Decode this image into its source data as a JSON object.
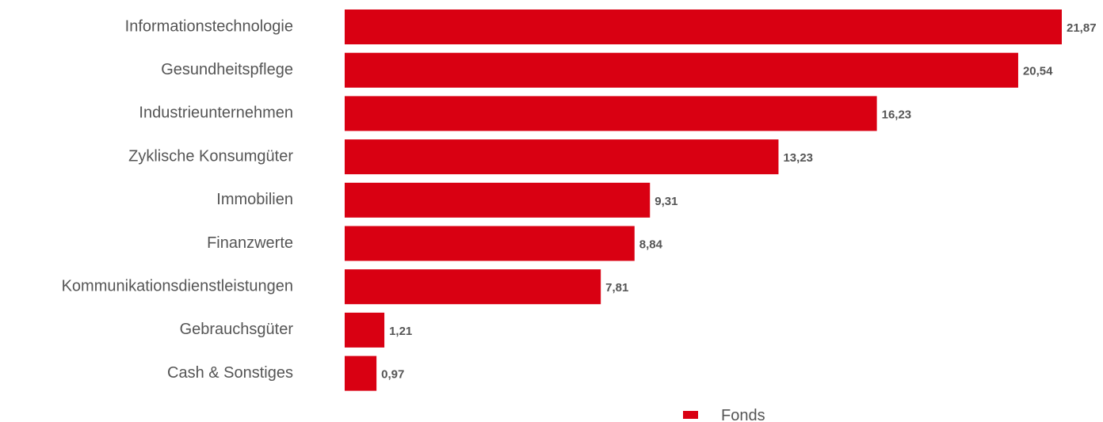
{
  "chart_data": {
    "type": "bar",
    "orientation": "horizontal",
    "categories": [
      "Informationstechnologie",
      "Gesundheitspflege",
      "Industrieunternehmen",
      "Zyklische Konsumgüter",
      "Immobilien",
      "Finanzwerte",
      "Kommunikationsdienstleistungen",
      "Gebrauchsgüter",
      "Cash & Sonstiges"
    ],
    "series": [
      {
        "name": "Fonds",
        "values": [
          21.87,
          20.54,
          16.23,
          13.23,
          9.31,
          8.84,
          7.81,
          1.21,
          0.97
        ],
        "value_labels": [
          "21,87",
          "20,54",
          "16,23",
          "13,23",
          "9,31",
          "8,84",
          "7,81",
          "1,21",
          "0,97"
        ],
        "color": "#D90012"
      }
    ],
    "xlim": [
      0,
      21.87
    ],
    "grid": false,
    "legend_position": "bottom",
    "title": "",
    "xlabel": "",
    "ylabel": ""
  },
  "colors": {
    "bar": "#D90012",
    "text": "#555555"
  }
}
